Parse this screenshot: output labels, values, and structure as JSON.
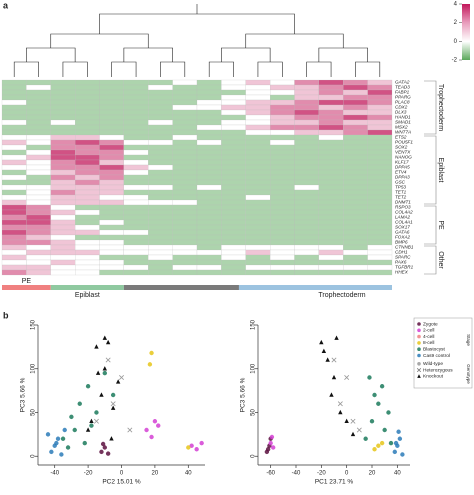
{
  "panel_labels": [
    "a",
    "b"
  ],
  "chart_data": [
    {
      "type": "heatmap",
      "rows": [
        "GATA2",
        "TEAD3",
        "FABP1",
        "PPARG",
        "PLAC8",
        "CDX2",
        "DLX3",
        "HAND1",
        "SMAD1",
        "MSX2",
        "WNT7A",
        "ETS2",
        "POU5F1",
        "SOX2",
        "VENTX",
        "NANOG",
        "KLF17",
        "DPPA5",
        "ETV4",
        "DPPA3",
        "GSC",
        "TP53",
        "TET1",
        "TET2",
        "DNMT1",
        "RSPO3",
        "COL4A2",
        "LAMA2",
        "COL4A1",
        "SOX17",
        "GATA6",
        "FOXA2",
        "BMP6",
        "CTNNB1",
        "CDH1",
        "SPARC",
        "PAX6",
        "TGFBR1",
        "HHEX"
      ],
      "values": [
        [
          -1,
          -1,
          -1,
          -1,
          -1,
          -1,
          -1,
          0,
          -1,
          0,
          1,
          0,
          2,
          3,
          2,
          1
        ],
        [
          -1,
          0,
          -1,
          -1,
          -1,
          -1,
          0,
          -1,
          -1,
          0,
          0,
          1,
          1,
          2,
          3,
          2
        ],
        [
          -1,
          -1,
          -1,
          -1,
          -1,
          -1,
          -1,
          -1,
          -1,
          -1,
          0,
          0,
          1,
          2,
          1,
          3
        ],
        [
          -1,
          -1,
          -1,
          -1,
          -1,
          -1,
          -1,
          -1,
          -1,
          0,
          0,
          -1,
          1,
          1,
          2,
          2
        ],
        [
          0,
          -1,
          -1,
          -1,
          -1,
          -1,
          -1,
          -1,
          0,
          0,
          1,
          1,
          2,
          3,
          3,
          2
        ],
        [
          -1,
          -1,
          -1,
          -1,
          -1,
          -1,
          -1,
          0,
          0,
          1,
          1,
          2,
          2,
          1,
          2,
          1
        ],
        [
          -1,
          -1,
          -1,
          -1,
          -1,
          -1,
          -1,
          -1,
          -1,
          0,
          1,
          2,
          3,
          2,
          1,
          1
        ],
        [
          -1,
          -1,
          -1,
          -1,
          -1,
          -1,
          -1,
          -1,
          -1,
          -1,
          0,
          1,
          2,
          2,
          3,
          2
        ],
        [
          0,
          -1,
          0,
          -1,
          -1,
          -1,
          0,
          -1,
          -1,
          0,
          0,
          1,
          1,
          2,
          1,
          1
        ],
        [
          -1,
          -1,
          -1,
          -1,
          -1,
          -1,
          -1,
          -1,
          0,
          0,
          1,
          2,
          2,
          3,
          2,
          1
        ],
        [
          -1,
          -1,
          -1,
          -1,
          -1,
          -1,
          -1,
          -1,
          -1,
          -1,
          0,
          0,
          1,
          1,
          2,
          3
        ],
        [
          0,
          0,
          1,
          1,
          0,
          -1,
          -1,
          0,
          -1,
          -1,
          -1,
          -1,
          -1,
          0,
          -1,
          -1
        ],
        [
          1,
          0,
          2,
          3,
          2,
          0,
          0,
          -1,
          0,
          -1,
          -1,
          0,
          -1,
          -1,
          -1,
          -1
        ],
        [
          0,
          -1,
          2,
          2,
          3,
          -1,
          -1,
          -1,
          -1,
          -1,
          -1,
          -1,
          -1,
          -1,
          -1,
          -1
        ],
        [
          -1,
          0,
          3,
          2,
          2,
          0,
          -1,
          -1,
          -1,
          -1,
          -1,
          -1,
          -1,
          -1,
          -1,
          -1
        ],
        [
          0,
          1,
          3,
          3,
          2,
          -1,
          -1,
          -1,
          -1,
          -1,
          -1,
          -1,
          -1,
          -1,
          -1,
          -1
        ],
        [
          1,
          0,
          2,
          3,
          1,
          0,
          -1,
          -1,
          -1,
          -1,
          -1,
          -1,
          -1,
          -1,
          -1,
          -1
        ],
        [
          0,
          0,
          2,
          2,
          3,
          1,
          0,
          -1,
          -1,
          -1,
          -1,
          -1,
          -1,
          -1,
          -1,
          -1
        ],
        [
          -1,
          0,
          1,
          2,
          2,
          0,
          -1,
          -1,
          -1,
          -1,
          -1,
          -1,
          -1,
          -1,
          -1,
          -1
        ],
        [
          0,
          -1,
          2,
          1,
          2,
          -1,
          -1,
          -1,
          -1,
          -1,
          -1,
          -1,
          -1,
          -1,
          -1,
          -1
        ],
        [
          -1,
          -1,
          1,
          2,
          1,
          -1,
          -1,
          -1,
          -1,
          -1,
          -1,
          -1,
          -1,
          -1,
          -1,
          -1
        ],
        [
          0,
          0,
          1,
          1,
          1,
          0,
          0,
          -1,
          0,
          -1,
          -1,
          -1,
          0,
          -1,
          -1,
          -1
        ],
        [
          -1,
          0,
          2,
          1,
          1,
          -1,
          -1,
          -1,
          -1,
          -1,
          -1,
          -1,
          -1,
          -1,
          -1,
          -1
        ],
        [
          0,
          0,
          1,
          1,
          0,
          0,
          -1,
          -1,
          -1,
          -1,
          0,
          -1,
          -1,
          -1,
          -1,
          -1
        ],
        [
          1,
          0,
          1,
          1,
          1,
          0,
          0,
          0,
          -1,
          -1,
          -1,
          -1,
          -1,
          -1,
          -1,
          -1
        ],
        [
          3,
          2,
          0,
          -1,
          -1,
          -1,
          -1,
          -1,
          -1,
          -1,
          -1,
          -1,
          -1,
          -1,
          -1,
          -1
        ],
        [
          3,
          2,
          1,
          0,
          -1,
          -1,
          -1,
          -1,
          -1,
          -1,
          -1,
          -1,
          -1,
          -1,
          -1,
          -1
        ],
        [
          2,
          3,
          0,
          -1,
          -1,
          -1,
          -1,
          -1,
          -1,
          -1,
          -1,
          -1,
          -1,
          -1,
          -1,
          -1
        ],
        [
          3,
          3,
          1,
          -1,
          0,
          -1,
          -1,
          -1,
          -1,
          -1,
          -1,
          -1,
          -1,
          -1,
          -1,
          -1
        ],
        [
          2,
          2,
          1,
          0,
          -1,
          -1,
          -1,
          -1,
          -1,
          -1,
          -1,
          -1,
          -1,
          -1,
          -1,
          -1
        ],
        [
          3,
          2,
          1,
          1,
          0,
          0,
          -1,
          -1,
          -1,
          -1,
          -1,
          -1,
          -1,
          -1,
          -1,
          -1
        ],
        [
          2,
          1,
          0,
          -1,
          -1,
          -1,
          -1,
          -1,
          -1,
          -1,
          -1,
          -1,
          -1,
          -1,
          -1,
          -1
        ],
        [
          2,
          2,
          1,
          0,
          0,
          -1,
          -1,
          -1,
          -1,
          -1,
          -1,
          -1,
          -1,
          -1,
          -1,
          -1
        ],
        [
          1,
          0,
          1,
          0,
          0,
          0,
          0,
          0,
          -1,
          0,
          0,
          0,
          0,
          0,
          -1,
          0
        ],
        [
          0,
          1,
          1,
          1,
          0,
          0,
          0,
          0,
          0,
          0,
          1,
          0,
          0,
          1,
          0,
          0
        ],
        [
          1,
          0,
          0,
          0,
          -1,
          -1,
          0,
          -1,
          -1,
          0,
          -1,
          0,
          -1,
          0,
          -1,
          0
        ],
        [
          0,
          0,
          1,
          0,
          0,
          -1,
          -1,
          -1,
          -1,
          -1,
          -1,
          -1,
          -1,
          -1,
          -1,
          -1
        ],
        [
          1,
          1,
          0,
          0,
          0,
          0,
          -1,
          0,
          0,
          -1,
          0,
          0,
          0,
          0,
          0,
          0
        ],
        [
          2,
          1,
          0,
          0,
          -1,
          -1,
          -1,
          -1,
          -1,
          -1,
          -1,
          -1,
          -1,
          -1,
          -1,
          -1
        ]
      ],
      "row_groups": [
        "Trophectoderm",
        "Epiblast",
        "PE",
        "Other"
      ],
      "column_groups": [
        "PE",
        "Epiblast",
        "Trophectoderm"
      ],
      "color_range": [
        -2,
        4
      ],
      "colorbar_ticks": [
        4,
        2,
        0,
        -2
      ]
    },
    {
      "type": "scatter",
      "xlabel": "PC2 15.01 %",
      "ylabel": "PC3 5.66 %",
      "xlim": [
        -50,
        50
      ],
      "ylim": [
        -10,
        150
      ],
      "xticks": [
        -40,
        -20,
        0,
        20,
        40
      ],
      "yticks": [
        0,
        50,
        100,
        150
      ],
      "series": [
        {
          "color": "#5c1040",
          "marker": "circle",
          "x": [
            -12,
            -10,
            -8,
            -11
          ],
          "y": [
            5,
            10,
            3,
            14
          ]
        },
        {
          "color": "#d43fd4",
          "marker": "circle",
          "x": [
            15,
            18,
            22,
            20,
            42,
            45,
            48
          ],
          "y": [
            30,
            22,
            35,
            40,
            12,
            8,
            15
          ]
        },
        {
          "color": "#e6c619",
          "marker": "circle",
          "x": [
            17,
            18,
            40
          ],
          "y": [
            105,
            118,
            10
          ]
        },
        {
          "color": "#1b7a5c",
          "marker": "circle",
          "x": [
            -35,
            -30,
            -25,
            -28,
            -20,
            -15,
            -22,
            -10,
            -5,
            -32,
            -18
          ],
          "y": [
            20,
            45,
            60,
            30,
            80,
            50,
            15,
            95,
            70,
            10,
            35
          ]
        },
        {
          "color": "#2b7bb9",
          "marker": "circle",
          "x": [
            -42,
            -40,
            -38,
            -36,
            -44,
            -34,
            -39
          ],
          "y": [
            5,
            12,
            20,
            2,
            25,
            30,
            15
          ]
        },
        {
          "color": "#999999",
          "marker": "cross",
          "x": [
            -5,
            0,
            -15,
            -8,
            5
          ],
          "y": [
            60,
            90,
            40,
            110,
            30
          ]
        },
        {
          "color": "#111111",
          "marker": "triangle",
          "x": [
            -18,
            -12,
            -10,
            -8,
            -15,
            -5,
            -20,
            -2,
            -10,
            -14,
            -6
          ],
          "y": [
            40,
            70,
            100,
            130,
            125,
            55,
            30,
            85,
            135,
            95,
            20
          ]
        }
      ]
    },
    {
      "type": "scatter",
      "xlabel": "PC1 23.71 %",
      "ylabel": "PC3 5.66 %",
      "xlim": [
        -70,
        50
      ],
      "ylim": [
        -10,
        150
      ],
      "xticks": [
        -60,
        -40,
        -20,
        0,
        20,
        40
      ],
      "yticks": [
        0,
        50,
        100,
        150
      ],
      "series": [
        {
          "color": "#5c1040",
          "marker": "circle",
          "x": [
            -63,
            -61,
            -60,
            -62
          ],
          "y": [
            5,
            12,
            20,
            8
          ]
        },
        {
          "color": "#d43fd4",
          "marker": "circle",
          "x": [
            -60,
            -58,
            -59
          ],
          "y": [
            15,
            10,
            22
          ]
        },
        {
          "color": "#e6c619",
          "marker": "circle",
          "x": [
            22,
            25,
            28
          ],
          "y": [
            8,
            12,
            15
          ]
        },
        {
          "color": "#1b7a5c",
          "marker": "circle",
          "x": [
            15,
            20,
            25,
            30,
            33,
            18,
            28,
            35,
            22
          ],
          "y": [
            20,
            40,
            60,
            30,
            50,
            90,
            80,
            15,
            70
          ]
        },
        {
          "color": "#2b7bb9",
          "marker": "circle",
          "x": [
            38,
            40,
            42,
            44,
            41,
            39
          ],
          "y": [
            5,
            12,
            20,
            2,
            28,
            15
          ]
        },
        {
          "color": "#999999",
          "marker": "cross",
          "x": [
            -5,
            0,
            5,
            -10,
            10
          ],
          "y": [
            60,
            90,
            40,
            110,
            30
          ]
        },
        {
          "color": "#111111",
          "marker": "triangle",
          "x": [
            -20,
            -15,
            -10,
            -12,
            -5,
            0,
            -18,
            5,
            -8
          ],
          "y": [
            130,
            110,
            90,
            70,
            50,
            40,
            120,
            25,
            135
          ]
        }
      ],
      "legend": {
        "stage_title": "Stage",
        "stages": [
          {
            "name": "Zygote",
            "color": "#5c1040"
          },
          {
            "name": "2-cell",
            "color": "#d43fd4"
          },
          {
            "name": "4-cell",
            "color": "#f08080"
          },
          {
            "name": "8-cell",
            "color": "#e6c619"
          },
          {
            "name": "Blastocyst",
            "color": "#1b7a5c"
          },
          {
            "name": "Cas9 control",
            "color": "#2b7bb9"
          }
        ],
        "genotype_title": "Genotype",
        "genotypes": [
          {
            "name": "Wild-type",
            "marker": "circle"
          },
          {
            "name": "Heterozygous",
            "marker": "cross"
          },
          {
            "name": "Knockout",
            "marker": "triangle"
          }
        ]
      }
    }
  ]
}
